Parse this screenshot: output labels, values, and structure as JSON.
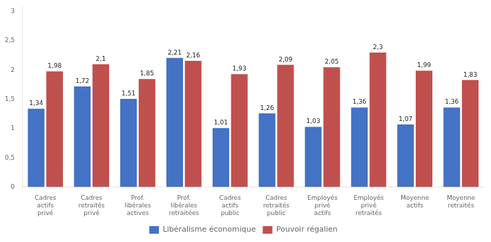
{
  "chart_data": {
    "type": "bar",
    "categories": [
      "Cadres\nactifs\nprivé",
      "Cadres\nretraités\nprivé",
      "Prof.\nlibérales\nactives",
      "Prof.\nlibérales\nretraitées",
      "Cadres\nactifs\npublic",
      "Cadres\nretraités\npublic",
      "Employés\nprivé\nactifs",
      "Employés\nprivé\nretraités",
      "Moyenne\nactifs",
      "Moyenne\nretraités"
    ],
    "series": [
      {
        "name": "Libéralisme économique",
        "color": "#4472C4",
        "values": [
          1.34,
          1.72,
          1.51,
          2.21,
          1.01,
          1.26,
          1.03,
          1.36,
          1.07,
          1.36
        ],
        "value_labels": [
          "1,34",
          "1,72",
          "1,51",
          "2,21",
          "1,01",
          "1,26",
          "1,03",
          "1,36",
          "1,07",
          "1,36"
        ]
      },
      {
        "name": "Pouvoir régalien",
        "color": "#C0504D",
        "values": [
          1.98,
          2.1,
          1.85,
          2.16,
          1.93,
          2.09,
          2.05,
          2.3,
          1.99,
          1.83
        ],
        "value_labels": [
          "1,98",
          "2,1",
          "1,85",
          "2,16",
          "1,93",
          "2,09",
          "2,05",
          "2,3",
          "1,99",
          "1,83"
        ]
      }
    ],
    "ylim": [
      0,
      3.1
    ],
    "yticks": [
      0,
      {
        "value": 0.5,
        "label": "0,5"
      },
      1,
      {
        "value": 1.5,
        "label": "1,5"
      },
      2,
      {
        "value": 2.5,
        "label": "2,5"
      },
      3
    ],
    "grid": false,
    "legend": "bottom",
    "data_labels": true
  }
}
